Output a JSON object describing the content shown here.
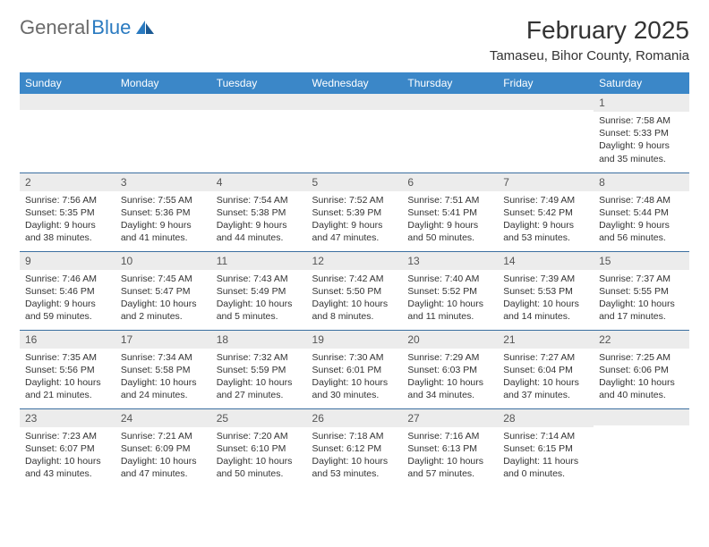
{
  "logo": {
    "text_gray": "General",
    "text_blue": "Blue"
  },
  "title": "February 2025",
  "location": "Tamaseu, Bihor County, Romania",
  "colors": {
    "header_bg": "#3b87c8",
    "header_text": "#ffffff",
    "daynum_bg": "#ececec",
    "row_border": "#3b6fa0",
    "logo_gray": "#6a6a6a",
    "logo_blue": "#2a7ac0"
  },
  "weekdays": [
    "Sunday",
    "Monday",
    "Tuesday",
    "Wednesday",
    "Thursday",
    "Friday",
    "Saturday"
  ],
  "weeks": [
    [
      {
        "day": "",
        "sunrise": "",
        "sunset": "",
        "daylight": ""
      },
      {
        "day": "",
        "sunrise": "",
        "sunset": "",
        "daylight": ""
      },
      {
        "day": "",
        "sunrise": "",
        "sunset": "",
        "daylight": ""
      },
      {
        "day": "",
        "sunrise": "",
        "sunset": "",
        "daylight": ""
      },
      {
        "day": "",
        "sunrise": "",
        "sunset": "",
        "daylight": ""
      },
      {
        "day": "",
        "sunrise": "",
        "sunset": "",
        "daylight": ""
      },
      {
        "day": "1",
        "sunrise": "Sunrise: 7:58 AM",
        "sunset": "Sunset: 5:33 PM",
        "daylight": "Daylight: 9 hours and 35 minutes."
      }
    ],
    [
      {
        "day": "2",
        "sunrise": "Sunrise: 7:56 AM",
        "sunset": "Sunset: 5:35 PM",
        "daylight": "Daylight: 9 hours and 38 minutes."
      },
      {
        "day": "3",
        "sunrise": "Sunrise: 7:55 AM",
        "sunset": "Sunset: 5:36 PM",
        "daylight": "Daylight: 9 hours and 41 minutes."
      },
      {
        "day": "4",
        "sunrise": "Sunrise: 7:54 AM",
        "sunset": "Sunset: 5:38 PM",
        "daylight": "Daylight: 9 hours and 44 minutes."
      },
      {
        "day": "5",
        "sunrise": "Sunrise: 7:52 AM",
        "sunset": "Sunset: 5:39 PM",
        "daylight": "Daylight: 9 hours and 47 minutes."
      },
      {
        "day": "6",
        "sunrise": "Sunrise: 7:51 AM",
        "sunset": "Sunset: 5:41 PM",
        "daylight": "Daylight: 9 hours and 50 minutes."
      },
      {
        "day": "7",
        "sunrise": "Sunrise: 7:49 AM",
        "sunset": "Sunset: 5:42 PM",
        "daylight": "Daylight: 9 hours and 53 minutes."
      },
      {
        "day": "8",
        "sunrise": "Sunrise: 7:48 AM",
        "sunset": "Sunset: 5:44 PM",
        "daylight": "Daylight: 9 hours and 56 minutes."
      }
    ],
    [
      {
        "day": "9",
        "sunrise": "Sunrise: 7:46 AM",
        "sunset": "Sunset: 5:46 PM",
        "daylight": "Daylight: 9 hours and 59 minutes."
      },
      {
        "day": "10",
        "sunrise": "Sunrise: 7:45 AM",
        "sunset": "Sunset: 5:47 PM",
        "daylight": "Daylight: 10 hours and 2 minutes."
      },
      {
        "day": "11",
        "sunrise": "Sunrise: 7:43 AM",
        "sunset": "Sunset: 5:49 PM",
        "daylight": "Daylight: 10 hours and 5 minutes."
      },
      {
        "day": "12",
        "sunrise": "Sunrise: 7:42 AM",
        "sunset": "Sunset: 5:50 PM",
        "daylight": "Daylight: 10 hours and 8 minutes."
      },
      {
        "day": "13",
        "sunrise": "Sunrise: 7:40 AM",
        "sunset": "Sunset: 5:52 PM",
        "daylight": "Daylight: 10 hours and 11 minutes."
      },
      {
        "day": "14",
        "sunrise": "Sunrise: 7:39 AM",
        "sunset": "Sunset: 5:53 PM",
        "daylight": "Daylight: 10 hours and 14 minutes."
      },
      {
        "day": "15",
        "sunrise": "Sunrise: 7:37 AM",
        "sunset": "Sunset: 5:55 PM",
        "daylight": "Daylight: 10 hours and 17 minutes."
      }
    ],
    [
      {
        "day": "16",
        "sunrise": "Sunrise: 7:35 AM",
        "sunset": "Sunset: 5:56 PM",
        "daylight": "Daylight: 10 hours and 21 minutes."
      },
      {
        "day": "17",
        "sunrise": "Sunrise: 7:34 AM",
        "sunset": "Sunset: 5:58 PM",
        "daylight": "Daylight: 10 hours and 24 minutes."
      },
      {
        "day": "18",
        "sunrise": "Sunrise: 7:32 AM",
        "sunset": "Sunset: 5:59 PM",
        "daylight": "Daylight: 10 hours and 27 minutes."
      },
      {
        "day": "19",
        "sunrise": "Sunrise: 7:30 AM",
        "sunset": "Sunset: 6:01 PM",
        "daylight": "Daylight: 10 hours and 30 minutes."
      },
      {
        "day": "20",
        "sunrise": "Sunrise: 7:29 AM",
        "sunset": "Sunset: 6:03 PM",
        "daylight": "Daylight: 10 hours and 34 minutes."
      },
      {
        "day": "21",
        "sunrise": "Sunrise: 7:27 AM",
        "sunset": "Sunset: 6:04 PM",
        "daylight": "Daylight: 10 hours and 37 minutes."
      },
      {
        "day": "22",
        "sunrise": "Sunrise: 7:25 AM",
        "sunset": "Sunset: 6:06 PM",
        "daylight": "Daylight: 10 hours and 40 minutes."
      }
    ],
    [
      {
        "day": "23",
        "sunrise": "Sunrise: 7:23 AM",
        "sunset": "Sunset: 6:07 PM",
        "daylight": "Daylight: 10 hours and 43 minutes."
      },
      {
        "day": "24",
        "sunrise": "Sunrise: 7:21 AM",
        "sunset": "Sunset: 6:09 PM",
        "daylight": "Daylight: 10 hours and 47 minutes."
      },
      {
        "day": "25",
        "sunrise": "Sunrise: 7:20 AM",
        "sunset": "Sunset: 6:10 PM",
        "daylight": "Daylight: 10 hours and 50 minutes."
      },
      {
        "day": "26",
        "sunrise": "Sunrise: 7:18 AM",
        "sunset": "Sunset: 6:12 PM",
        "daylight": "Daylight: 10 hours and 53 minutes."
      },
      {
        "day": "27",
        "sunrise": "Sunrise: 7:16 AM",
        "sunset": "Sunset: 6:13 PM",
        "daylight": "Daylight: 10 hours and 57 minutes."
      },
      {
        "day": "28",
        "sunrise": "Sunrise: 7:14 AM",
        "sunset": "Sunset: 6:15 PM",
        "daylight": "Daylight: 11 hours and 0 minutes."
      },
      {
        "day": "",
        "sunrise": "",
        "sunset": "",
        "daylight": ""
      }
    ]
  ]
}
